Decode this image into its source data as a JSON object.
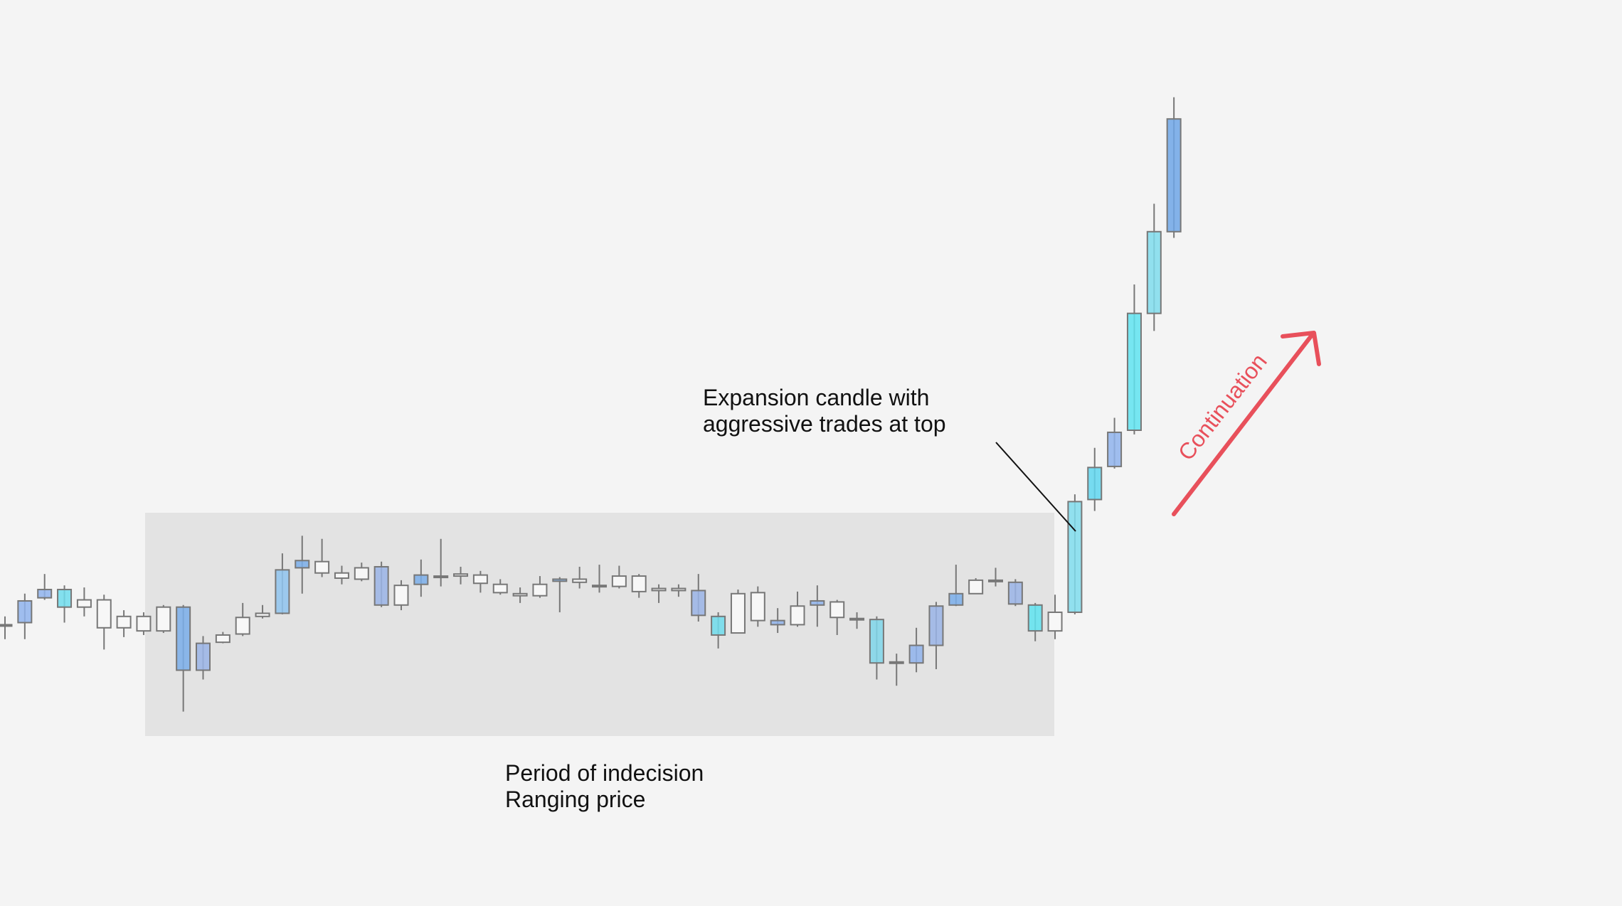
{
  "chart_data": {
    "type": "candlestick",
    "ylim": [
      0,
      876
    ],
    "open": [
      272,
      274,
      298,
      306,
      296,
      296,
      269,
      266,
      289,
      289,
      228,
      255,
      263,
      280,
      283,
      327,
      333,
      322,
      316,
      328,
      291,
      311,
      319,
      319,
      320,
      311,
      302,
      300,
      314,
      313,
      310,
      309,
      319,
      307,
      305,
      305,
      280,
      264,
      303,
      276,
      272,
      291,
      294,
      278,
      277,
      236,
      235,
      252,
      291,
      302,
      314,
      313,
      291,
      266,
      284,
      393,
      425,
      460,
      573,
      652
    ],
    "high": [
      280,
      302,
      321,
      310,
      308,
      301,
      286,
      284,
      291,
      291,
      261,
      265,
      293,
      291,
      341,
      358,
      355,
      329,
      332,
      333,
      315,
      335,
      355,
      328,
      324,
      316,
      308,
      319,
      318,
      328,
      330,
      329,
      321,
      311,
      311,
      321,
      284,
      306,
      309,
      288,
      304,
      310,
      296,
      284,
      280,
      244,
      269,
      294,
      330,
      317,
      327,
      316,
      293,
      301,
      398,
      443,
      472,
      601,
      679,
      782
    ],
    "low": [
      258,
      258,
      296,
      274,
      280,
      248,
      260,
      262,
      264,
      188,
      219,
      254,
      261,
      278,
      282,
      302,
      318,
      311,
      314,
      289,
      286,
      299,
      309,
      311,
      303,
      301,
      293,
      298,
      284,
      307,
      303,
      307,
      298,
      293,
      299,
      275,
      249,
      264,
      270,
      264,
      270,
      270,
      262,
      268,
      219,
      213,
      226,
      229,
      290,
      302,
      309,
      290,
      256,
      258,
      282,
      382,
      423,
      456,
      556,
      646
    ],
    "close": [
      272,
      295,
      306,
      289,
      289,
      269,
      280,
      280,
      266,
      228,
      254,
      262,
      279,
      283,
      325,
      334,
      322,
      317,
      327,
      291,
      310,
      320,
      319,
      321,
      312,
      303,
      300,
      311,
      316,
      316,
      309,
      319,
      304,
      305,
      307,
      281,
      262,
      302,
      276,
      272,
      290,
      295,
      279,
      278,
      235,
      236,
      252,
      290,
      302,
      315,
      315,
      292,
      266,
      284,
      391,
      424,
      458,
      573,
      652,
      761
    ],
    "fills": [
      null,
      "#8fb3ec",
      "#8fb3ec",
      "#6fdcec",
      null,
      null,
      null,
      null,
      null,
      "#7aaeea",
      "#9ab4e6",
      null,
      null,
      null,
      "#8fc4ee",
      "#7aaeea",
      null,
      null,
      null,
      "#9ab4e6",
      null,
      "#7aaeea",
      "#8fd8ea",
      null,
      null,
      null,
      null,
      null,
      "#7aaeea",
      null,
      null,
      null,
      null,
      null,
      null,
      "#9ab4e6",
      "#6fdcec",
      null,
      null,
      "#8fb3ec",
      null,
      "#8fb3ec",
      null,
      null,
      "#7fd6ea",
      "#7aaeea",
      "#8fb3ec",
      "#9ab4e6",
      "#7aaeea",
      null,
      null,
      "#9ab4e6",
      "#5fe3f0",
      null,
      "#7fdcec",
      "#5fd6ee",
      "#8fb3ec",
      "#5fe3f0",
      "#7fdcec",
      "#6fa6e6"
    ],
    "range_box_color": "#e3e3e3",
    "annotations": [
      {
        "lines": [
          "Expansion candle with",
          "aggressive trades at top"
        ]
      },
      {
        "lines": [
          "Period of indecision",
          "Ranging price"
        ]
      },
      {
        "lines": [
          "Continuation"
        ],
        "color": "#e8505b"
      }
    ]
  }
}
